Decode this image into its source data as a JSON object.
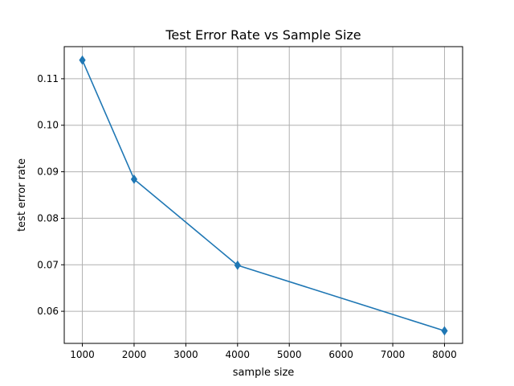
{
  "chart_data": {
    "type": "line",
    "title": "Test Error Rate vs Sample Size",
    "xlabel": "sample size",
    "ylabel": "test error rate",
    "x": [
      1000,
      2000,
      4000,
      8000
    ],
    "series": [
      {
        "values": [
          0.114,
          0.0884,
          0.0699,
          0.0558
        ],
        "color": "#1f77b4",
        "marker": "diamond"
      }
    ],
    "xlim": [
      650,
      8350
    ],
    "ylim": [
      0.0531,
      0.1169
    ],
    "xticks": [
      1000,
      2000,
      3000,
      4000,
      5000,
      6000,
      7000,
      8000
    ],
    "xtick_labels": [
      "1000",
      "2000",
      "3000",
      "4000",
      "5000",
      "6000",
      "7000",
      "8000"
    ],
    "yticks": [
      0.06,
      0.07,
      0.08,
      0.09,
      0.1,
      0.11
    ],
    "ytick_labels": [
      "0.06",
      "0.07",
      "0.08",
      "0.09",
      "0.10",
      "0.11"
    ],
    "grid": true,
    "legend": false
  }
}
